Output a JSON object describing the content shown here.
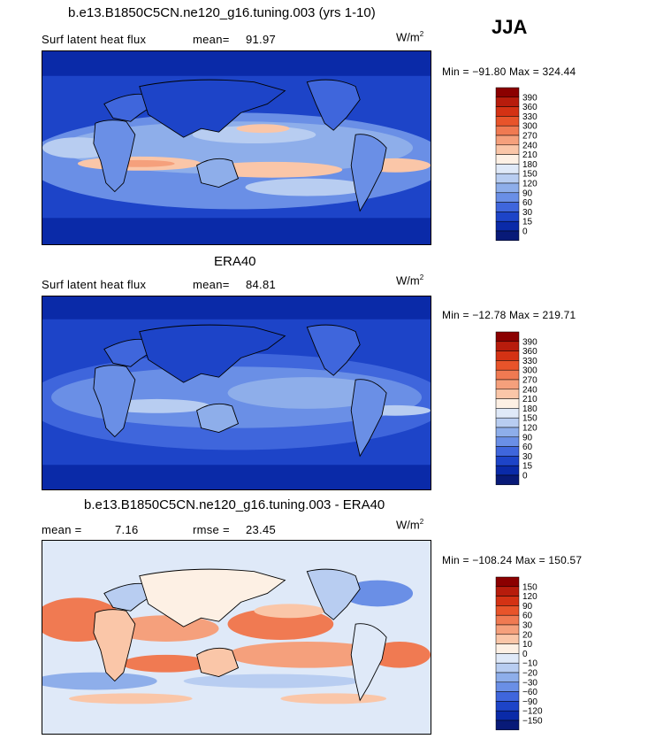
{
  "season": "JJA",
  "panels": [
    {
      "title": "b.e13.B1850C5CN.ne120_g16.tuning.003 (yrs 1-10)",
      "field_label": "Surf latent heat flux",
      "stat1_label": "mean=",
      "stat1_value": "91.97",
      "stat2_label": "",
      "stat2_value": "",
      "units_base": "W/m",
      "units_exp": "2",
      "minmax": "Min = −91.80 Max = 324.44",
      "palette": "abs",
      "colorbar_labels": [
        "390",
        "360",
        "330",
        "300",
        "270",
        "240",
        "210",
        "180",
        "150",
        "120",
        "90",
        "60",
        "30",
        "15",
        "0"
      ]
    },
    {
      "title": "ERA40",
      "field_label": "Surf latent heat flux",
      "stat1_label": "mean=",
      "stat1_value": "84.81",
      "stat2_label": "",
      "stat2_value": "",
      "units_base": "W/m",
      "units_exp": "2",
      "minmax": "Min = −12.78 Max = 219.71",
      "palette": "abs",
      "colorbar_labels": [
        "390",
        "360",
        "330",
        "300",
        "270",
        "240",
        "210",
        "180",
        "150",
        "120",
        "90",
        "60",
        "30",
        "15",
        "0"
      ]
    },
    {
      "title": "b.e13.B1850C5CN.ne120_g16.tuning.003 - ERA40",
      "field_label": "",
      "stat1_label": "mean =",
      "stat1_value": "7.16",
      "stat2_label": "rmse =",
      "stat2_value": "23.45",
      "units_base": "W/m",
      "units_exp": "2",
      "minmax": "Min = −108.24 Max = 150.57",
      "palette": "diff",
      "colorbar_labels": [
        "150",
        "120",
        "90",
        "60",
        "30",
        "20",
        "10",
        "0",
        "−10",
        "−20",
        "−30",
        "−60",
        "−90",
        "−120",
        "−150"
      ]
    }
  ],
  "colors": {
    "abs": [
      "#8b0000",
      "#b71c0c",
      "#d43214",
      "#e8542a",
      "#f07a52",
      "#f5a07c",
      "#fac6a8",
      "#fdf0e4",
      "#dfe9f8",
      "#b8cdf1",
      "#8eaeea",
      "#6a8fe6",
      "#3f66dc",
      "#1d44c8",
      "#0a2aa8",
      "#081a78"
    ],
    "diff": [
      "#8b0000",
      "#b71c0c",
      "#d43214",
      "#e8542a",
      "#f07a52",
      "#f5a07c",
      "#fac6a8",
      "#fdf0e4",
      "#dfe9f8",
      "#b8cdf1",
      "#8eaeea",
      "#6a8fe6",
      "#3f66dc",
      "#1d44c8",
      "#0a2aa8",
      "#081a78"
    ]
  }
}
